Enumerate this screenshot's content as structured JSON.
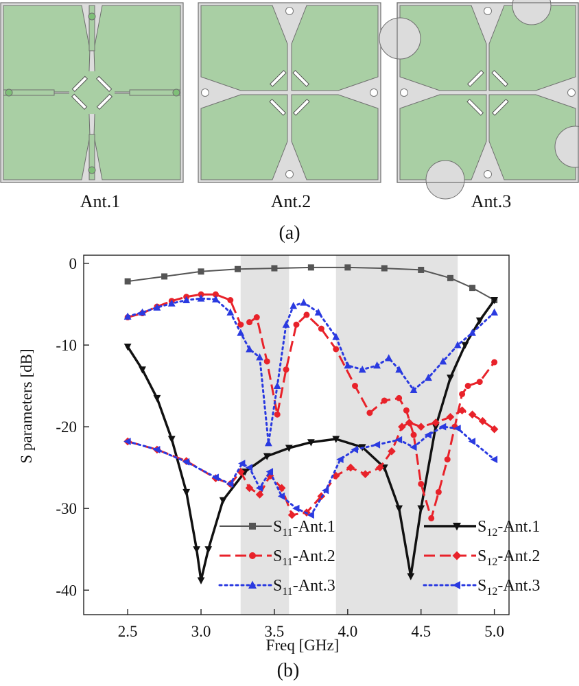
{
  "panel_a": {
    "label": "(a)",
    "antennas": [
      {
        "id": "ant1",
        "label": "Ant.1"
      },
      {
        "id": "ant2",
        "label": "Ant.2"
      },
      {
        "id": "ant3",
        "label": "Ant.3"
      }
    ],
    "colors": {
      "substrate": "#a9cfa4",
      "outline": "#6e6e6e",
      "background": "#dcdcdc"
    }
  },
  "panel_b_label": "(b)",
  "chart_data": {
    "type": "line",
    "title": "",
    "xlabel": "Freq [GHz]",
    "ylabel": "S parameters [dB]",
    "xlim": [
      2.2,
      5.1
    ],
    "ylim": [
      -43,
      1
    ],
    "xticks": [
      2.5,
      3.0,
      3.5,
      4.0,
      4.5,
      5.0
    ],
    "xtick_labels": [
      "2.5",
      "3.0",
      "3.5",
      "4.0",
      "4.5",
      "5.0"
    ],
    "yticks": [
      0,
      -10,
      -20,
      -30,
      -40
    ],
    "ytick_labels": [
      "0",
      "-10",
      "-20",
      "-30",
      "-40"
    ],
    "grid": false,
    "legend": "bottom, two columns",
    "shaded_bands": [
      [
        3.27,
        3.6
      ],
      [
        3.92,
        4.75
      ]
    ],
    "band_color": "#e3e3e3",
    "series": [
      {
        "id": "s11a1",
        "name_base": "S",
        "name_sub": "11",
        "name_suffix": "-Ant.1",
        "color": "#555555",
        "dash": "solid",
        "width": 2,
        "marker": "square",
        "points": [
          [
            2.5,
            -2.2
          ],
          [
            2.75,
            -1.6
          ],
          [
            3.0,
            -1.0
          ],
          [
            3.25,
            -0.7
          ],
          [
            3.5,
            -0.6
          ],
          [
            3.75,
            -0.5
          ],
          [
            4.0,
            -0.5
          ],
          [
            4.25,
            -0.6
          ],
          [
            4.5,
            -0.8
          ],
          [
            4.7,
            -1.8
          ],
          [
            4.85,
            -3.0
          ],
          [
            5.0,
            -4.5
          ]
        ]
      },
      {
        "id": "s12a1",
        "name_base": "S",
        "name_sub": "12",
        "name_suffix": "-Ant.1",
        "color": "#111111",
        "dash": "solid",
        "width": 3.5,
        "marker": "triangle-down",
        "points": [
          [
            2.5,
            -10.2
          ],
          [
            2.6,
            -13
          ],
          [
            2.7,
            -16.5
          ],
          [
            2.8,
            -21.5
          ],
          [
            2.9,
            -28
          ],
          [
            2.97,
            -35
          ],
          [
            3.0,
            -38.8
          ],
          [
            3.05,
            -35
          ],
          [
            3.15,
            -29
          ],
          [
            3.3,
            -25.5
          ],
          [
            3.45,
            -23.6
          ],
          [
            3.6,
            -22.6
          ],
          [
            3.75,
            -21.9
          ],
          [
            3.92,
            -21.5
          ],
          [
            4.1,
            -22.5
          ],
          [
            4.25,
            -25
          ],
          [
            4.35,
            -30
          ],
          [
            4.43,
            -38.3
          ],
          [
            4.5,
            -30
          ],
          [
            4.6,
            -20
          ],
          [
            4.7,
            -14
          ],
          [
            4.8,
            -10
          ],
          [
            4.9,
            -7
          ],
          [
            5.0,
            -4.5
          ]
        ]
      },
      {
        "id": "s11a2",
        "name_base": "S",
        "name_sub": "11",
        "name_suffix": "-Ant.2",
        "color": "#e8222a",
        "dash": "dash",
        "width": 3,
        "marker": "circle",
        "points": [
          [
            2.5,
            -6.6
          ],
          [
            2.6,
            -6.1
          ],
          [
            2.7,
            -5.3
          ],
          [
            2.8,
            -4.6
          ],
          [
            2.9,
            -4.1
          ],
          [
            3.0,
            -3.8
          ],
          [
            3.1,
            -3.8
          ],
          [
            3.2,
            -4.5
          ],
          [
            3.27,
            -7.5
          ],
          [
            3.33,
            -7.2
          ],
          [
            3.38,
            -6.6
          ],
          [
            3.45,
            -12
          ],
          [
            3.52,
            -18.5
          ],
          [
            3.58,
            -13
          ],
          [
            3.65,
            -7.5
          ],
          [
            3.72,
            -6.3
          ],
          [
            3.82,
            -8
          ],
          [
            3.92,
            -10.5
          ],
          [
            4.05,
            -15
          ],
          [
            4.15,
            -18.3
          ],
          [
            4.25,
            -16.8
          ],
          [
            4.35,
            -16.5
          ],
          [
            4.4,
            -18
          ],
          [
            4.45,
            -21
          ],
          [
            4.5,
            -27
          ],
          [
            4.57,
            -31.2
          ],
          [
            4.62,
            -28
          ],
          [
            4.68,
            -24
          ],
          [
            4.73,
            -20
          ],
          [
            4.78,
            -16
          ],
          [
            4.82,
            -15
          ],
          [
            4.9,
            -14.5
          ],
          [
            5.0,
            -12.1
          ]
        ]
      },
      {
        "id": "s12a2",
        "name_base": "S",
        "name_sub": "12",
        "name_suffix": "-Ant.2",
        "color": "#e8222a",
        "dash": "dash",
        "width": 3,
        "marker": "diamond",
        "points": [
          [
            2.5,
            -21.8
          ],
          [
            2.7,
            -22.8
          ],
          [
            2.9,
            -24.2
          ],
          [
            3.1,
            -26.3
          ],
          [
            3.2,
            -27
          ],
          [
            3.27,
            -25.5
          ],
          [
            3.33,
            -27.5
          ],
          [
            3.4,
            -28.3
          ],
          [
            3.47,
            -26
          ],
          [
            3.55,
            -27.5
          ],
          [
            3.62,
            -30.8
          ],
          [
            3.72,
            -30.5
          ],
          [
            3.82,
            -28.5
          ],
          [
            3.92,
            -26
          ],
          [
            4.02,
            -25
          ],
          [
            4.12,
            -25.8
          ],
          [
            4.22,
            -25
          ],
          [
            4.3,
            -23
          ],
          [
            4.37,
            -20
          ],
          [
            4.42,
            -19.5
          ],
          [
            4.5,
            -20
          ],
          [
            4.6,
            -19.5
          ],
          [
            4.7,
            -18.8
          ],
          [
            4.78,
            -18
          ],
          [
            4.85,
            -18.5
          ],
          [
            4.92,
            -19.3
          ],
          [
            5.0,
            -20.3
          ]
        ]
      },
      {
        "id": "s11a3",
        "name_base": "S",
        "name_sub": "11",
        "name_suffix": "-Ant.3",
        "color": "#2a3ae0",
        "dash": "dot",
        "width": 3,
        "marker": "triangle-up",
        "points": [
          [
            2.5,
            -6.5
          ],
          [
            2.6,
            -6.0
          ],
          [
            2.7,
            -5.4
          ],
          [
            2.8,
            -4.9
          ],
          [
            2.9,
            -4.5
          ],
          [
            3.0,
            -4.3
          ],
          [
            3.1,
            -4.4
          ],
          [
            3.2,
            -6.0
          ],
          [
            3.27,
            -8.5
          ],
          [
            3.33,
            -10.5
          ],
          [
            3.4,
            -11.5
          ],
          [
            3.46,
            -22
          ],
          [
            3.52,
            -15
          ],
          [
            3.58,
            -7.5
          ],
          [
            3.63,
            -5.2
          ],
          [
            3.7,
            -4.8
          ],
          [
            3.8,
            -6.0
          ],
          [
            3.92,
            -9
          ],
          [
            4.0,
            -12.5
          ],
          [
            4.1,
            -13
          ],
          [
            4.2,
            -12.5
          ],
          [
            4.28,
            -11.6
          ],
          [
            4.35,
            -13
          ],
          [
            4.45,
            -15.5
          ],
          [
            4.55,
            -14
          ],
          [
            4.65,
            -12
          ],
          [
            4.75,
            -10
          ],
          [
            4.85,
            -8.5
          ],
          [
            5.0,
            -6.0
          ]
        ]
      },
      {
        "id": "s12a3",
        "name_base": "S",
        "name_sub": "12",
        "name_suffix": "-Ant.3",
        "color": "#2a3ae0",
        "dash": "dot",
        "width": 3,
        "marker": "triangle-left",
        "points": [
          [
            2.5,
            -21.8
          ],
          [
            2.7,
            -22.8
          ],
          [
            2.9,
            -24.3
          ],
          [
            3.1,
            -26.2
          ],
          [
            3.2,
            -27
          ],
          [
            3.28,
            -24.5
          ],
          [
            3.33,
            -25
          ],
          [
            3.4,
            -27.5
          ],
          [
            3.47,
            -25.5
          ],
          [
            3.55,
            -28.5
          ],
          [
            3.65,
            -30
          ],
          [
            3.75,
            -30.8
          ],
          [
            3.85,
            -27.8
          ],
          [
            3.95,
            -24
          ],
          [
            4.05,
            -22.8
          ],
          [
            4.2,
            -22.2
          ],
          [
            4.35,
            -21.6
          ],
          [
            4.45,
            -22.5
          ],
          [
            4.55,
            -21
          ],
          [
            4.65,
            -20
          ],
          [
            4.75,
            -20.2
          ],
          [
            4.85,
            -21.8
          ],
          [
            5.0,
            -24
          ]
        ]
      }
    ]
  }
}
